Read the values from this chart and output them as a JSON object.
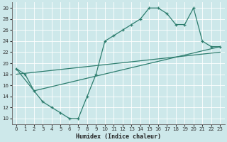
{
  "background_color": "#cde8ea",
  "grid_color": "#b0d4d6",
  "line_color": "#2d7d6e",
  "xlabel": "Humidex (Indice chaleur)",
  "xlim": [
    -0.5,
    23.5
  ],
  "ylim": [
    9,
    31
  ],
  "xticks": [
    0,
    1,
    2,
    3,
    4,
    5,
    6,
    7,
    8,
    9,
    10,
    11,
    12,
    13,
    14,
    15,
    16,
    17,
    18,
    19,
    20,
    21,
    22,
    23
  ],
  "yticks": [
    10,
    12,
    14,
    16,
    18,
    20,
    22,
    24,
    26,
    28,
    30
  ],
  "line1_x": [
    0,
    1,
    2,
    3,
    4,
    5,
    6,
    7,
    8,
    9,
    10,
    11,
    12,
    13,
    14,
    15,
    16,
    17,
    18,
    19,
    20,
    21,
    22,
    23
  ],
  "line1_y": [
    19,
    18,
    15,
    13,
    12,
    11,
    10,
    10,
    14,
    18,
    24,
    25,
    26,
    27,
    28,
    30,
    30,
    29,
    27,
    27,
    30,
    24,
    23,
    23
  ],
  "line2_x": [
    0,
    2,
    23
  ],
  "line2_y": [
    19,
    15,
    23
  ],
  "line3_x": [
    0,
    23
  ],
  "line3_y": [
    18,
    22
  ]
}
